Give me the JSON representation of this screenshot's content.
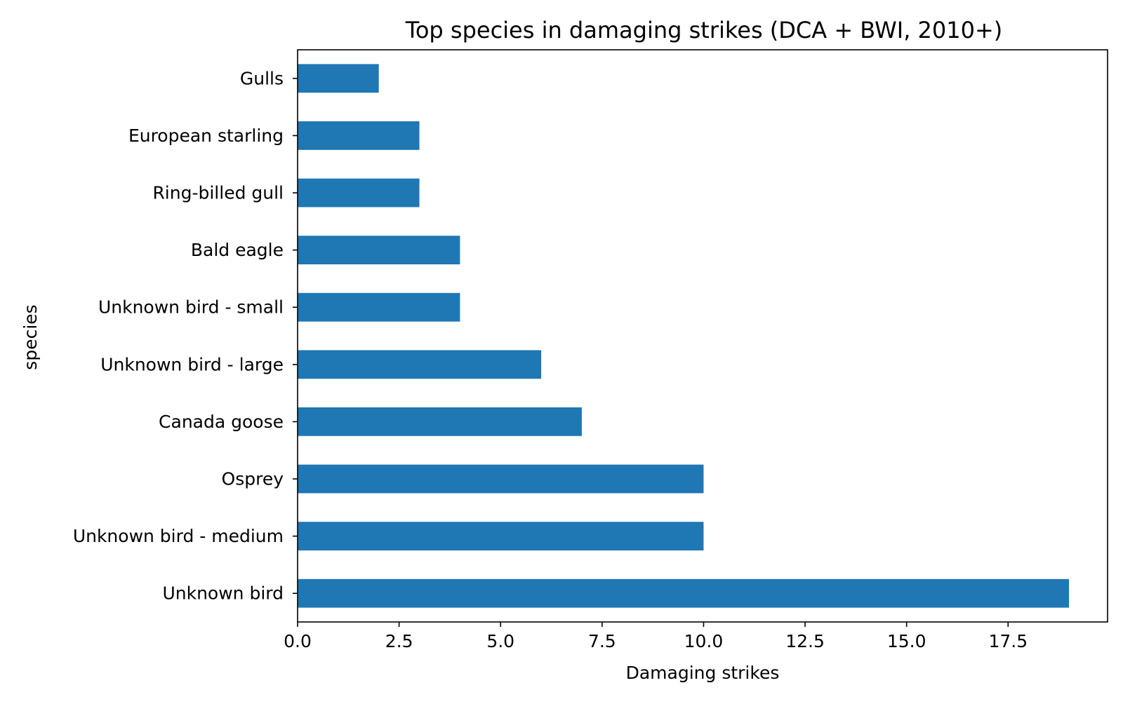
{
  "chart_data": {
    "type": "bar",
    "orientation": "horizontal",
    "title": "Top species in damaging strikes (DCA + BWI, 2010+)",
    "xlabel": "Damaging strikes",
    "ylabel": "species",
    "categories": [
      "Unknown bird",
      "Unknown bird - medium",
      "Osprey",
      "Canada goose",
      "Unknown bird - large",
      "Unknown bird - small",
      "Bald eagle",
      "Ring-billed gull",
      "European starling",
      "Gulls"
    ],
    "values": [
      19,
      10,
      10,
      7,
      6,
      4,
      4,
      3,
      3,
      2
    ],
    "xlim": [
      0,
      19.95
    ],
    "xticks": [
      0.0,
      2.5,
      5.0,
      7.5,
      10.0,
      12.5,
      15.0,
      17.5
    ],
    "xtick_labels": [
      "0.0",
      "2.5",
      "5.0",
      "7.5",
      "10.0",
      "12.5",
      "15.0",
      "17.5"
    ],
    "grid": false,
    "legend": "none",
    "bar_color": "#1f77b4"
  }
}
